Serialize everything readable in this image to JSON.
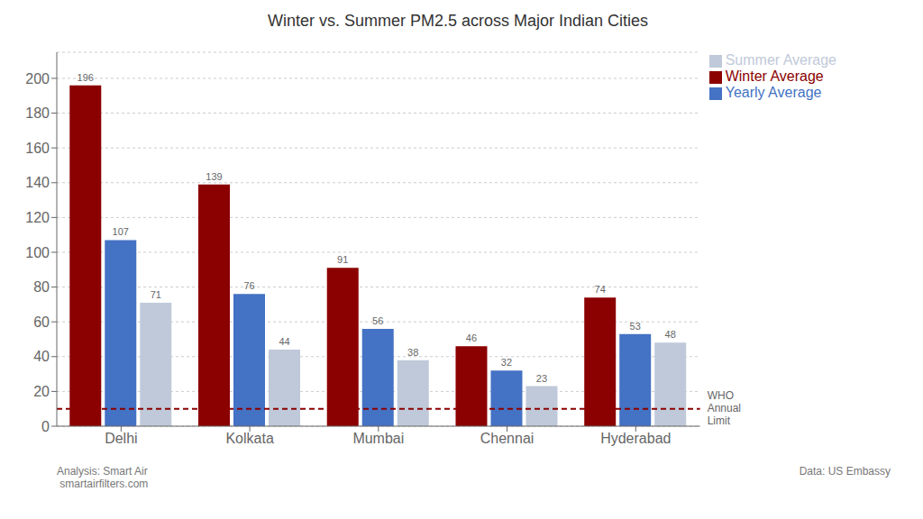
{
  "chart_data": {
    "type": "bar",
    "title": "Winter vs. Summer PM2.5 across Major Indian Cities",
    "categories": [
      "Delhi",
      "Kolkata",
      "Mumbai",
      "Chennai",
      "Hyderabad"
    ],
    "series": [
      {
        "name": "Winter Average",
        "color": "#8B0000",
        "values": [
          196,
          139,
          91,
          46,
          74
        ]
      },
      {
        "name": "Yearly Average",
        "color": "#4472C4",
        "values": [
          107,
          76,
          56,
          32,
          53
        ]
      },
      {
        "name": "Summer Average",
        "color": "#BFC9D9",
        "values": [
          71,
          44,
          38,
          23,
          48
        ]
      }
    ],
    "ylim": [
      0,
      215
    ],
    "yticks": [
      0,
      20,
      40,
      60,
      80,
      100,
      120,
      140,
      160,
      180,
      200
    ],
    "grid": true,
    "data_labels": true,
    "legend": "upper right",
    "hlines": [
      {
        "y": 10,
        "label": "WHO\nAnnual\nLimit",
        "color": "#8B0000",
        "line_style": "dashed"
      }
    ],
    "annotations": [
      "Analysis: Smart Air\n smartairfilters.com",
      "Data: US Embassy"
    ]
  }
}
